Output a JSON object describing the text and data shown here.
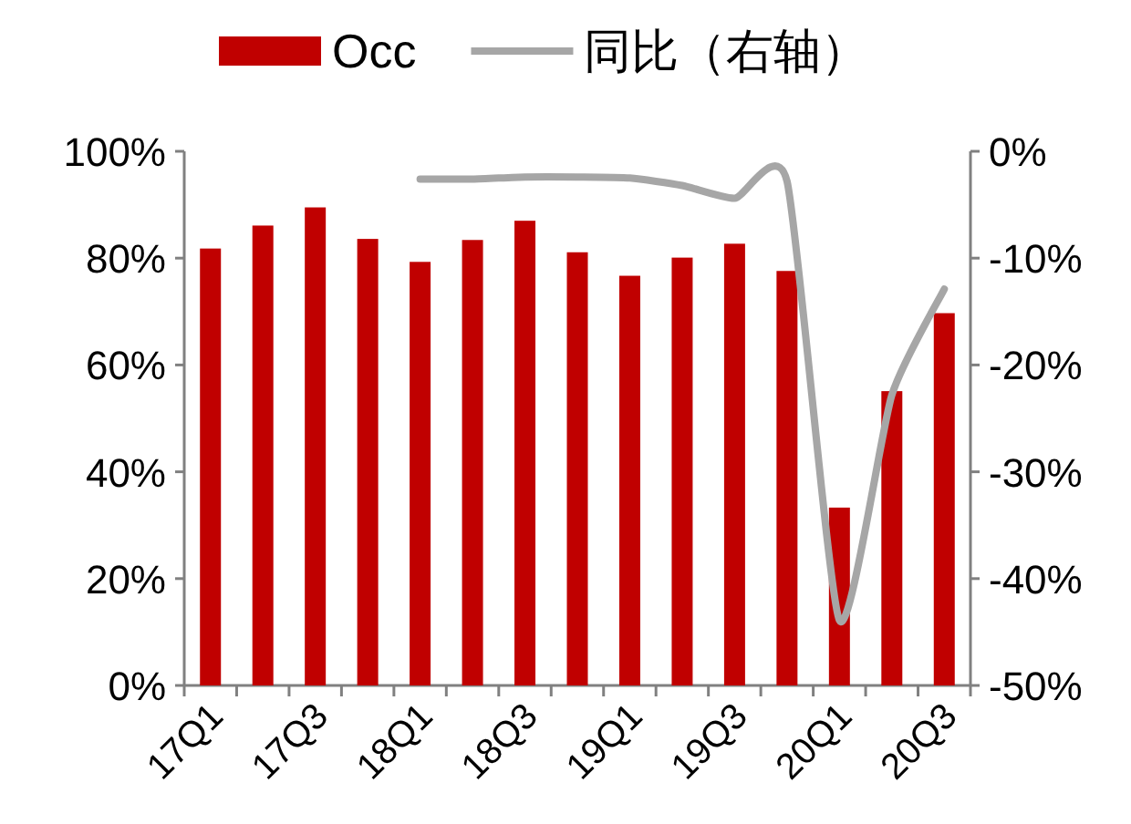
{
  "chart_data": {
    "type": "bar",
    "categories": [
      "17Q1",
      null,
      "17Q3",
      null,
      "18Q1",
      null,
      "18Q3",
      null,
      "19Q1",
      null,
      "19Q3",
      null,
      "20Q1",
      null,
      "20Q3"
    ],
    "series": [
      {
        "name": "Occ",
        "color": "#c00000",
        "values": [
          81.8,
          86.1,
          89.5,
          83.6,
          79.3,
          83.4,
          87.0,
          81.1,
          76.7,
          80.1,
          82.7,
          77.6,
          33.3,
          55.1,
          69.7
        ]
      },
      {
        "name": "同比（右轴）",
        "type": "line",
        "axis": "y2",
        "color": "#a6a6a6",
        "values": [
          null,
          null,
          null,
          null,
          -2.6,
          -2.6,
          -2.4,
          -2.4,
          -2.5,
          -3.2,
          -4.4,
          -2.8,
          -43.9,
          -22.8,
          -12.9
        ]
      }
    ],
    "ylim": [
      0,
      100
    ],
    "yticks": [
      {
        "value": 0,
        "label": "0%"
      },
      {
        "value": 20,
        "label": "20%"
      },
      {
        "value": 40,
        "label": "40%"
      },
      {
        "value": 60,
        "label": "60%"
      },
      {
        "value": 80,
        "label": "80%"
      },
      {
        "value": 100,
        "label": "100%"
      }
    ],
    "y2lim": [
      -50,
      0
    ],
    "y2ticks": [
      {
        "value": -50,
        "label": "-50%"
      },
      {
        "value": -40,
        "label": "-40%"
      },
      {
        "value": -30,
        "label": "-30%"
      },
      {
        "value": -20,
        "label": "-20%"
      },
      {
        "value": -10,
        "label": "-10%"
      },
      {
        "value": 0,
        "label": "0%"
      }
    ],
    "legend": "top",
    "grid": false
  }
}
